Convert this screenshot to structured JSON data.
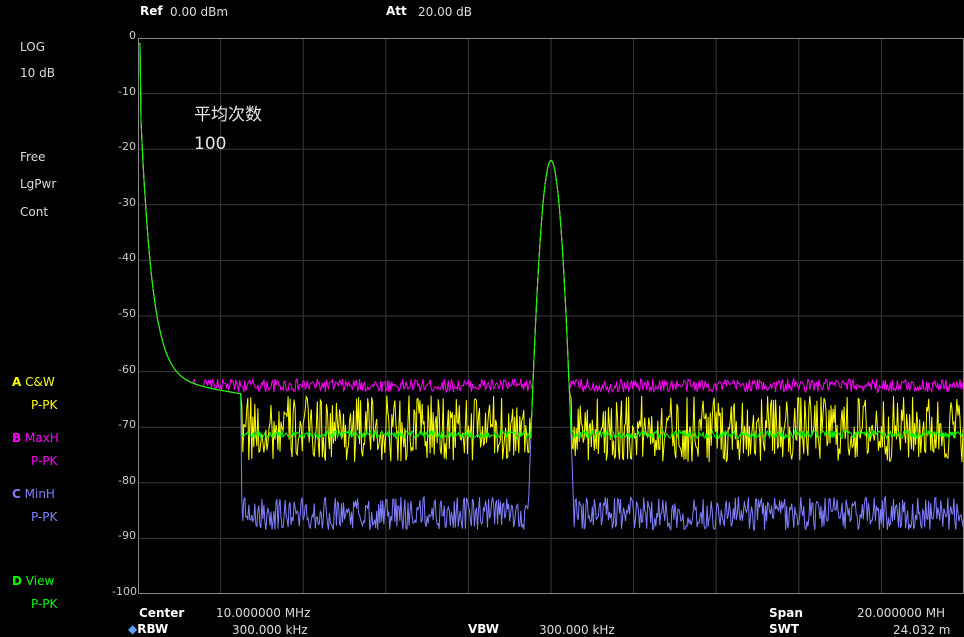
{
  "header": {
    "ref_label": "Ref",
    "ref_value": "0.00 dBm",
    "att_label": "Att",
    "att_value": "20.00 dB"
  },
  "left_panel": {
    "scale_type": "LOG",
    "scale_div": "10 dB",
    "trigger": "Free",
    "detector": "LgPwr",
    "sweep_mode": "Cont"
  },
  "traces": [
    {
      "letter": "A",
      "name": "C&W",
      "detector": "P-PK",
      "color": "#ffff00"
    },
    {
      "letter": "B",
      "name": "MaxH",
      "detector": "P-PK",
      "color": "#ff00ff"
    },
    {
      "letter": "C",
      "name": "MinH",
      "detector": "P-PK",
      "color": "#8080ff"
    },
    {
      "letter": "D",
      "name": "View",
      "detector": "P-PK",
      "color": "#00ff00"
    }
  ],
  "overlay": {
    "avg_label": "平均次数",
    "avg_value": "100"
  },
  "bottom": {
    "center_label": "Center",
    "center_value": "10.000000  MHz",
    "span_label": "Span",
    "span_value": "20.000000  MH",
    "rbw_label": "RBW",
    "rbw_value": "300.000  kHz",
    "vbw_label": "VBW",
    "vbw_value": "300.000  kHz",
    "swt_label": "SWT",
    "swt_value": "24.032 m"
  },
  "chart_data": {
    "type": "line",
    "y_ticks": [
      "0",
      "-10",
      "-20",
      "-30",
      "-40",
      "-50",
      "-60",
      "-70",
      "-80",
      "-90",
      "-100"
    ],
    "ylim": [
      -100,
      0
    ],
    "xlim_mhz": [
      0,
      20
    ],
    "grid": true,
    "series": [
      {
        "name": "MaxH",
        "color": "#ff00ff",
        "noise_floor": -62.5,
        "noise_jitter": 1.2,
        "peak_mhz": 10.0,
        "peak_dbm": -22
      },
      {
        "name": "C&W",
        "color": "#ffff00",
        "noise_floor": -71.5,
        "noise_jitter": 6.0,
        "peak_mhz": 10.0,
        "peak_dbm": -22
      },
      {
        "name": "MinH",
        "color": "#8080ff",
        "noise_floor": -85.5,
        "noise_jitter": 3.0,
        "peak_mhz": 10.0,
        "peak_dbm": -22
      },
      {
        "name": "View",
        "color": "#00ff00",
        "noise_floor": -71.3,
        "noise_jitter": 0.7,
        "peak_mhz": 10.0,
        "peak_dbm": -22
      }
    ]
  }
}
